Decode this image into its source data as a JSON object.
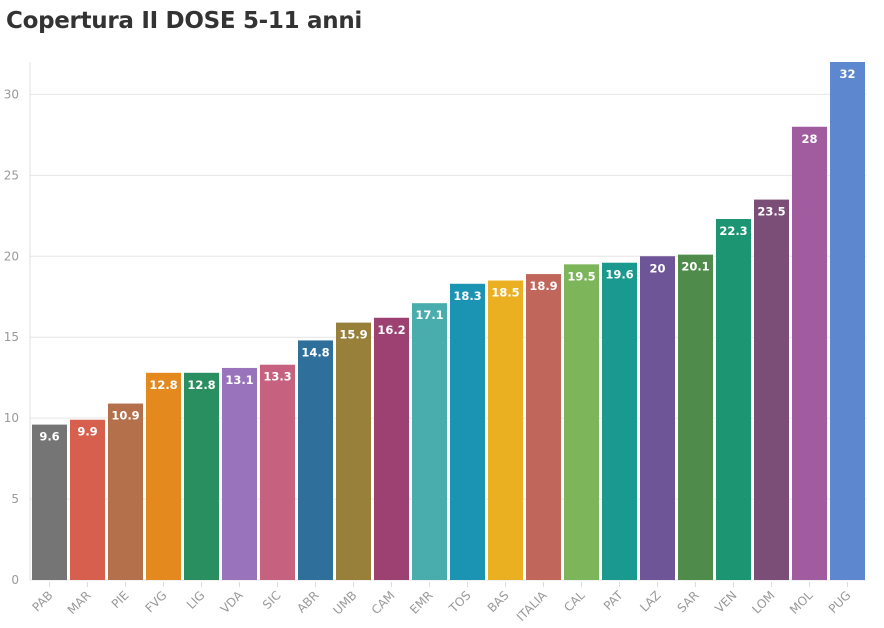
{
  "chart_data": {
    "type": "bar",
    "title": "Copertura II DOSE 5-11 anni",
    "xlabel": "",
    "ylabel": "",
    "ylim": [
      0,
      32
    ],
    "yticks": [
      0,
      5,
      10,
      15,
      20,
      25,
      30
    ],
    "grid": true,
    "categories": [
      "PAB",
      "MAR",
      "PIE",
      "FVG",
      "LIG",
      "VDA",
      "SIC",
      "ABR",
      "UMB",
      "CAM",
      "EMR",
      "TOS",
      "BAS",
      "ITALIA",
      "CAL",
      "PAT",
      "LAZ",
      "SAR",
      "VEN",
      "LOM",
      "MOL",
      "PUG"
    ],
    "values": [
      9.6,
      9.9,
      10.9,
      12.8,
      12.8,
      13.1,
      13.3,
      14.8,
      15.9,
      16.2,
      17.1,
      18.3,
      18.5,
      18.9,
      19.5,
      19.6,
      20,
      20.1,
      22.3,
      23.5,
      28,
      32
    ],
    "colors": [
      "#757575",
      "#d65f4e",
      "#b3704b",
      "#e3891e",
      "#2a8f60",
      "#9a73bd",
      "#c6617f",
      "#2f6f9b",
      "#98803a",
      "#9c4172",
      "#4aadad",
      "#1b93b3",
      "#ebb022",
      "#c0665b",
      "#7db55a",
      "#1a9a8f",
      "#6d5598",
      "#4f8b4a",
      "#1c9573",
      "#7b4e78",
      "#a05c9f",
      "#5d87cf"
    ]
  }
}
